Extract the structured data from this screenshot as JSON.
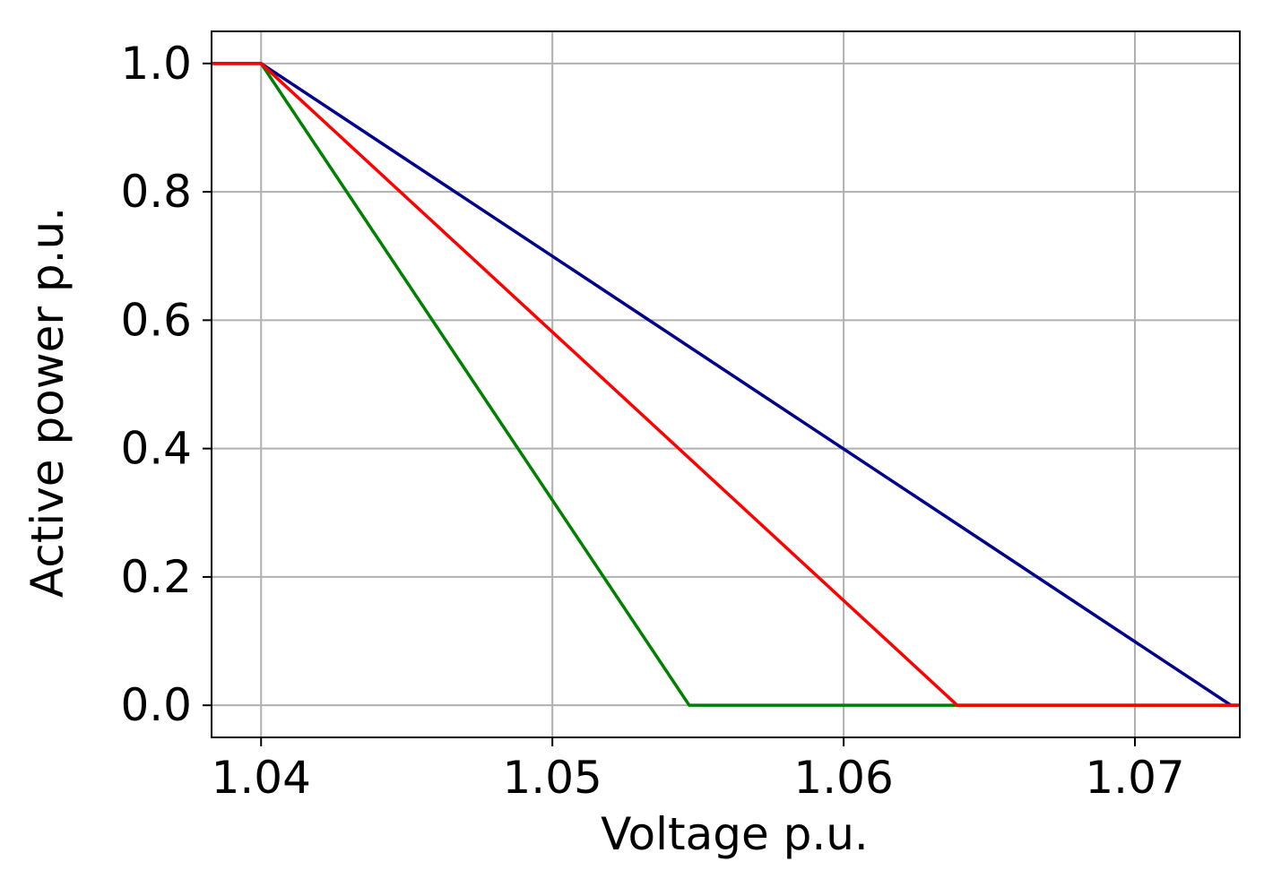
{
  "chart_data": {
    "type": "line",
    "title": "",
    "xlabel": "Voltage p.u.",
    "ylabel": "Active power p.u.",
    "xlim": [
      1.0383,
      1.0736
    ],
    "ylim": [
      -0.05,
      1.05
    ],
    "grid": true,
    "legend": "none",
    "x_ticks": [
      1.04,
      1.05,
      1.06,
      1.07
    ],
    "x_tick_labels": [
      "1.04",
      "1.05",
      "1.06",
      "1.07"
    ],
    "y_ticks": [
      0.0,
      0.2,
      0.4,
      0.6,
      0.8,
      1.0
    ],
    "y_tick_labels": [
      "0.0",
      "0.2",
      "0.4",
      "0.6",
      "0.8",
      "1.0"
    ],
    "series": [
      {
        "color": "#00008b",
        "points": [
          [
            1.0383,
            1.0
          ],
          [
            1.04,
            1.0
          ],
          [
            1.0733,
            0.0
          ],
          [
            1.0736,
            0.0
          ]
        ]
      },
      {
        "color": "#008000",
        "points": [
          [
            1.0383,
            1.0
          ],
          [
            1.04,
            1.0
          ],
          [
            1.0547,
            0.0
          ],
          [
            1.0736,
            0.0
          ]
        ]
      },
      {
        "color": "#ff0000",
        "points": [
          [
            1.0383,
            1.0
          ],
          [
            1.04,
            1.0
          ],
          [
            1.0639,
            0.0
          ],
          [
            1.0736,
            0.0
          ]
        ]
      }
    ]
  }
}
